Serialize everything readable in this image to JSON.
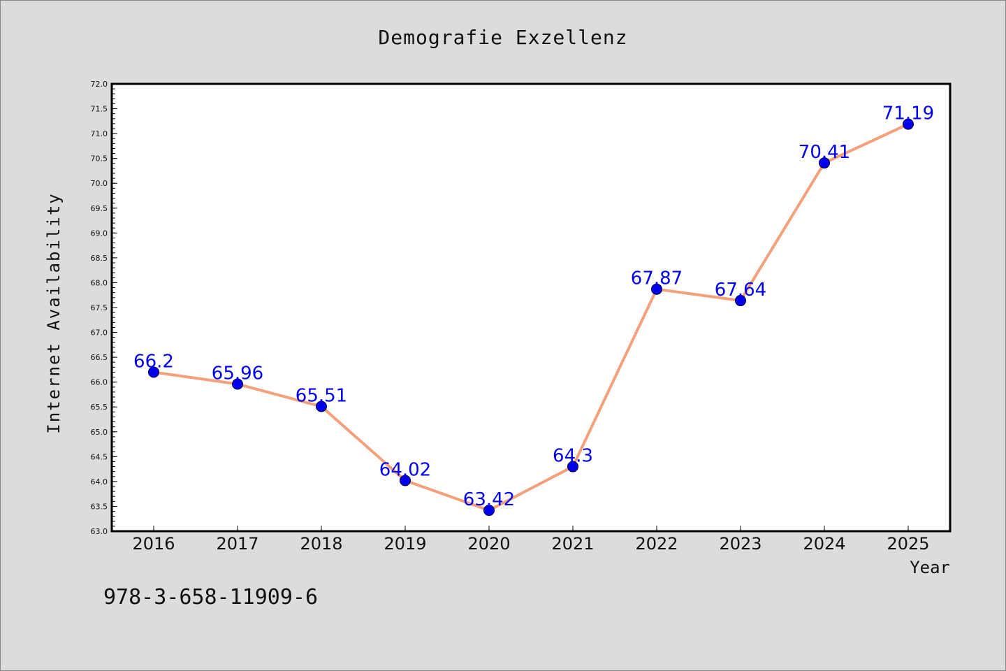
{
  "chart_data": {
    "type": "line",
    "title": "Demografie Exzellenz",
    "xlabel": "Year",
    "ylabel": "Internet Availability",
    "categories": [
      "2016",
      "2017",
      "2018",
      "2019",
      "2020",
      "2021",
      "2022",
      "2023",
      "2024",
      "2025"
    ],
    "series": [
      {
        "values": [
          66.2,
          65.96,
          65.51,
          64.02,
          63.42,
          64.3,
          67.87,
          67.64,
          70.41,
          71.19
        ]
      }
    ],
    "data_labels": [
      "66.2",
      "65.96",
      "65.51",
      "64.02",
      "63.42",
      "64.3",
      "67.87",
      "67.64",
      "70.41",
      "71.19"
    ],
    "ylim": [
      63.0,
      72.0
    ],
    "yticks": [
      "63.0",
      "63.5",
      "64.0",
      "64.5",
      "65.0",
      "65.5",
      "66.0",
      "66.5",
      "67.0",
      "67.5",
      "68.0",
      "68.5",
      "69.0",
      "69.5",
      "70.0",
      "70.5",
      "71.0",
      "71.5",
      "72.0"
    ],
    "grid": false,
    "legend": "none",
    "colors": {
      "line": "#f4a07a",
      "marker": "#0000ee",
      "label": "#0000ee",
      "background": "#dcdcdc",
      "plot_area": "#ffffff"
    }
  },
  "footer": {
    "isbn": "978-3-658-11909-6"
  }
}
